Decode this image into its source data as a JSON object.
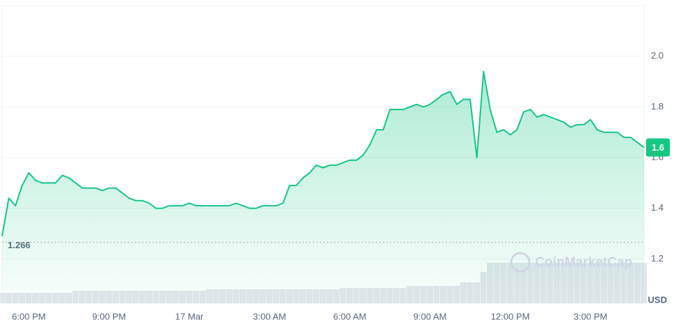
{
  "chart_data": {
    "type": "area",
    "categories": [
      null,
      null,
      null,
      null,
      "6:00 PM",
      null,
      null,
      null,
      null,
      null,
      null,
      null,
      null,
      null,
      null,
      null,
      "9:00 PM",
      null,
      null,
      null,
      null,
      null,
      null,
      null,
      null,
      null,
      null,
      null,
      "17 Mar",
      null,
      null,
      null,
      null,
      null,
      null,
      null,
      null,
      null,
      null,
      null,
      "3:00 AM",
      null,
      null,
      null,
      null,
      null,
      null,
      null,
      null,
      null,
      null,
      null,
      "6:00 AM",
      null,
      null,
      null,
      null,
      null,
      null,
      null,
      null,
      null,
      null,
      null,
      "9:00 AM",
      null,
      null,
      null,
      null,
      null,
      null,
      null,
      null,
      null,
      null,
      null,
      "12:00 PM",
      null,
      null,
      null,
      null,
      null,
      null,
      null,
      null,
      null,
      null,
      null,
      "3:00 PM",
      null,
      null,
      null,
      null,
      null,
      null,
      null,
      null
    ],
    "values": [
      1.29,
      1.44,
      1.41,
      1.49,
      1.54,
      1.51,
      1.5,
      1.5,
      1.5,
      1.53,
      1.52,
      1.5,
      1.48,
      1.48,
      1.48,
      1.47,
      1.48,
      1.48,
      1.46,
      1.44,
      1.43,
      1.43,
      1.42,
      1.4,
      1.4,
      1.41,
      1.41,
      1.41,
      1.42,
      1.41,
      1.41,
      1.41,
      1.41,
      1.41,
      1.41,
      1.42,
      1.41,
      1.4,
      1.4,
      1.41,
      1.41,
      1.41,
      1.42,
      1.49,
      1.49,
      1.52,
      1.54,
      1.57,
      1.56,
      1.57,
      1.57,
      1.58,
      1.59,
      1.59,
      1.61,
      1.65,
      1.71,
      1.71,
      1.79,
      1.79,
      1.79,
      1.8,
      1.81,
      1.8,
      1.81,
      1.83,
      1.85,
      1.86,
      1.81,
      1.83,
      1.83,
      1.6,
      1.94,
      1.79,
      1.7,
      1.71,
      1.69,
      1.71,
      1.78,
      1.79,
      1.76,
      1.77,
      1.76,
      1.75,
      1.74,
      1.72,
      1.73,
      1.73,
      1.75,
      1.71,
      1.7,
      1.7,
      1.7,
      1.68,
      1.68,
      1.66,
      1.64
    ],
    "last_price_label": "1.6",
    "reference_line": 1.266,
    "volume": [
      15,
      15,
      15,
      15,
      15,
      15,
      15,
      15,
      15,
      15,
      15,
      18,
      18,
      18,
      18,
      18,
      18,
      18,
      18,
      18,
      18,
      18,
      18,
      18,
      18,
      18,
      18,
      18,
      18,
      18,
      18,
      20,
      20,
      20,
      20,
      20,
      20,
      20,
      20,
      20,
      20,
      20,
      20,
      20,
      20,
      20,
      20,
      20,
      20,
      20,
      20,
      22,
      22,
      22,
      22,
      22,
      22,
      22,
      22,
      22,
      22,
      25,
      25,
      25,
      25,
      25,
      25,
      25,
      25,
      30,
      30,
      30,
      45,
      58,
      58,
      58,
      58,
      58,
      58,
      58,
      58,
      58,
      58,
      58,
      58,
      58,
      58,
      58,
      58,
      58,
      58,
      58,
      58,
      58,
      58,
      58,
      58
    ],
    "color": "#16c784",
    "ylim": [
      1.025,
      2.2
    ],
    "yticks": [
      1.2,
      1.4,
      1.6,
      1.8,
      {
        "value": 2,
        "label": "2.0"
      }
    ],
    "y_unit": "USD",
    "watermark": "CoinMarketCap",
    "grid": true
  }
}
